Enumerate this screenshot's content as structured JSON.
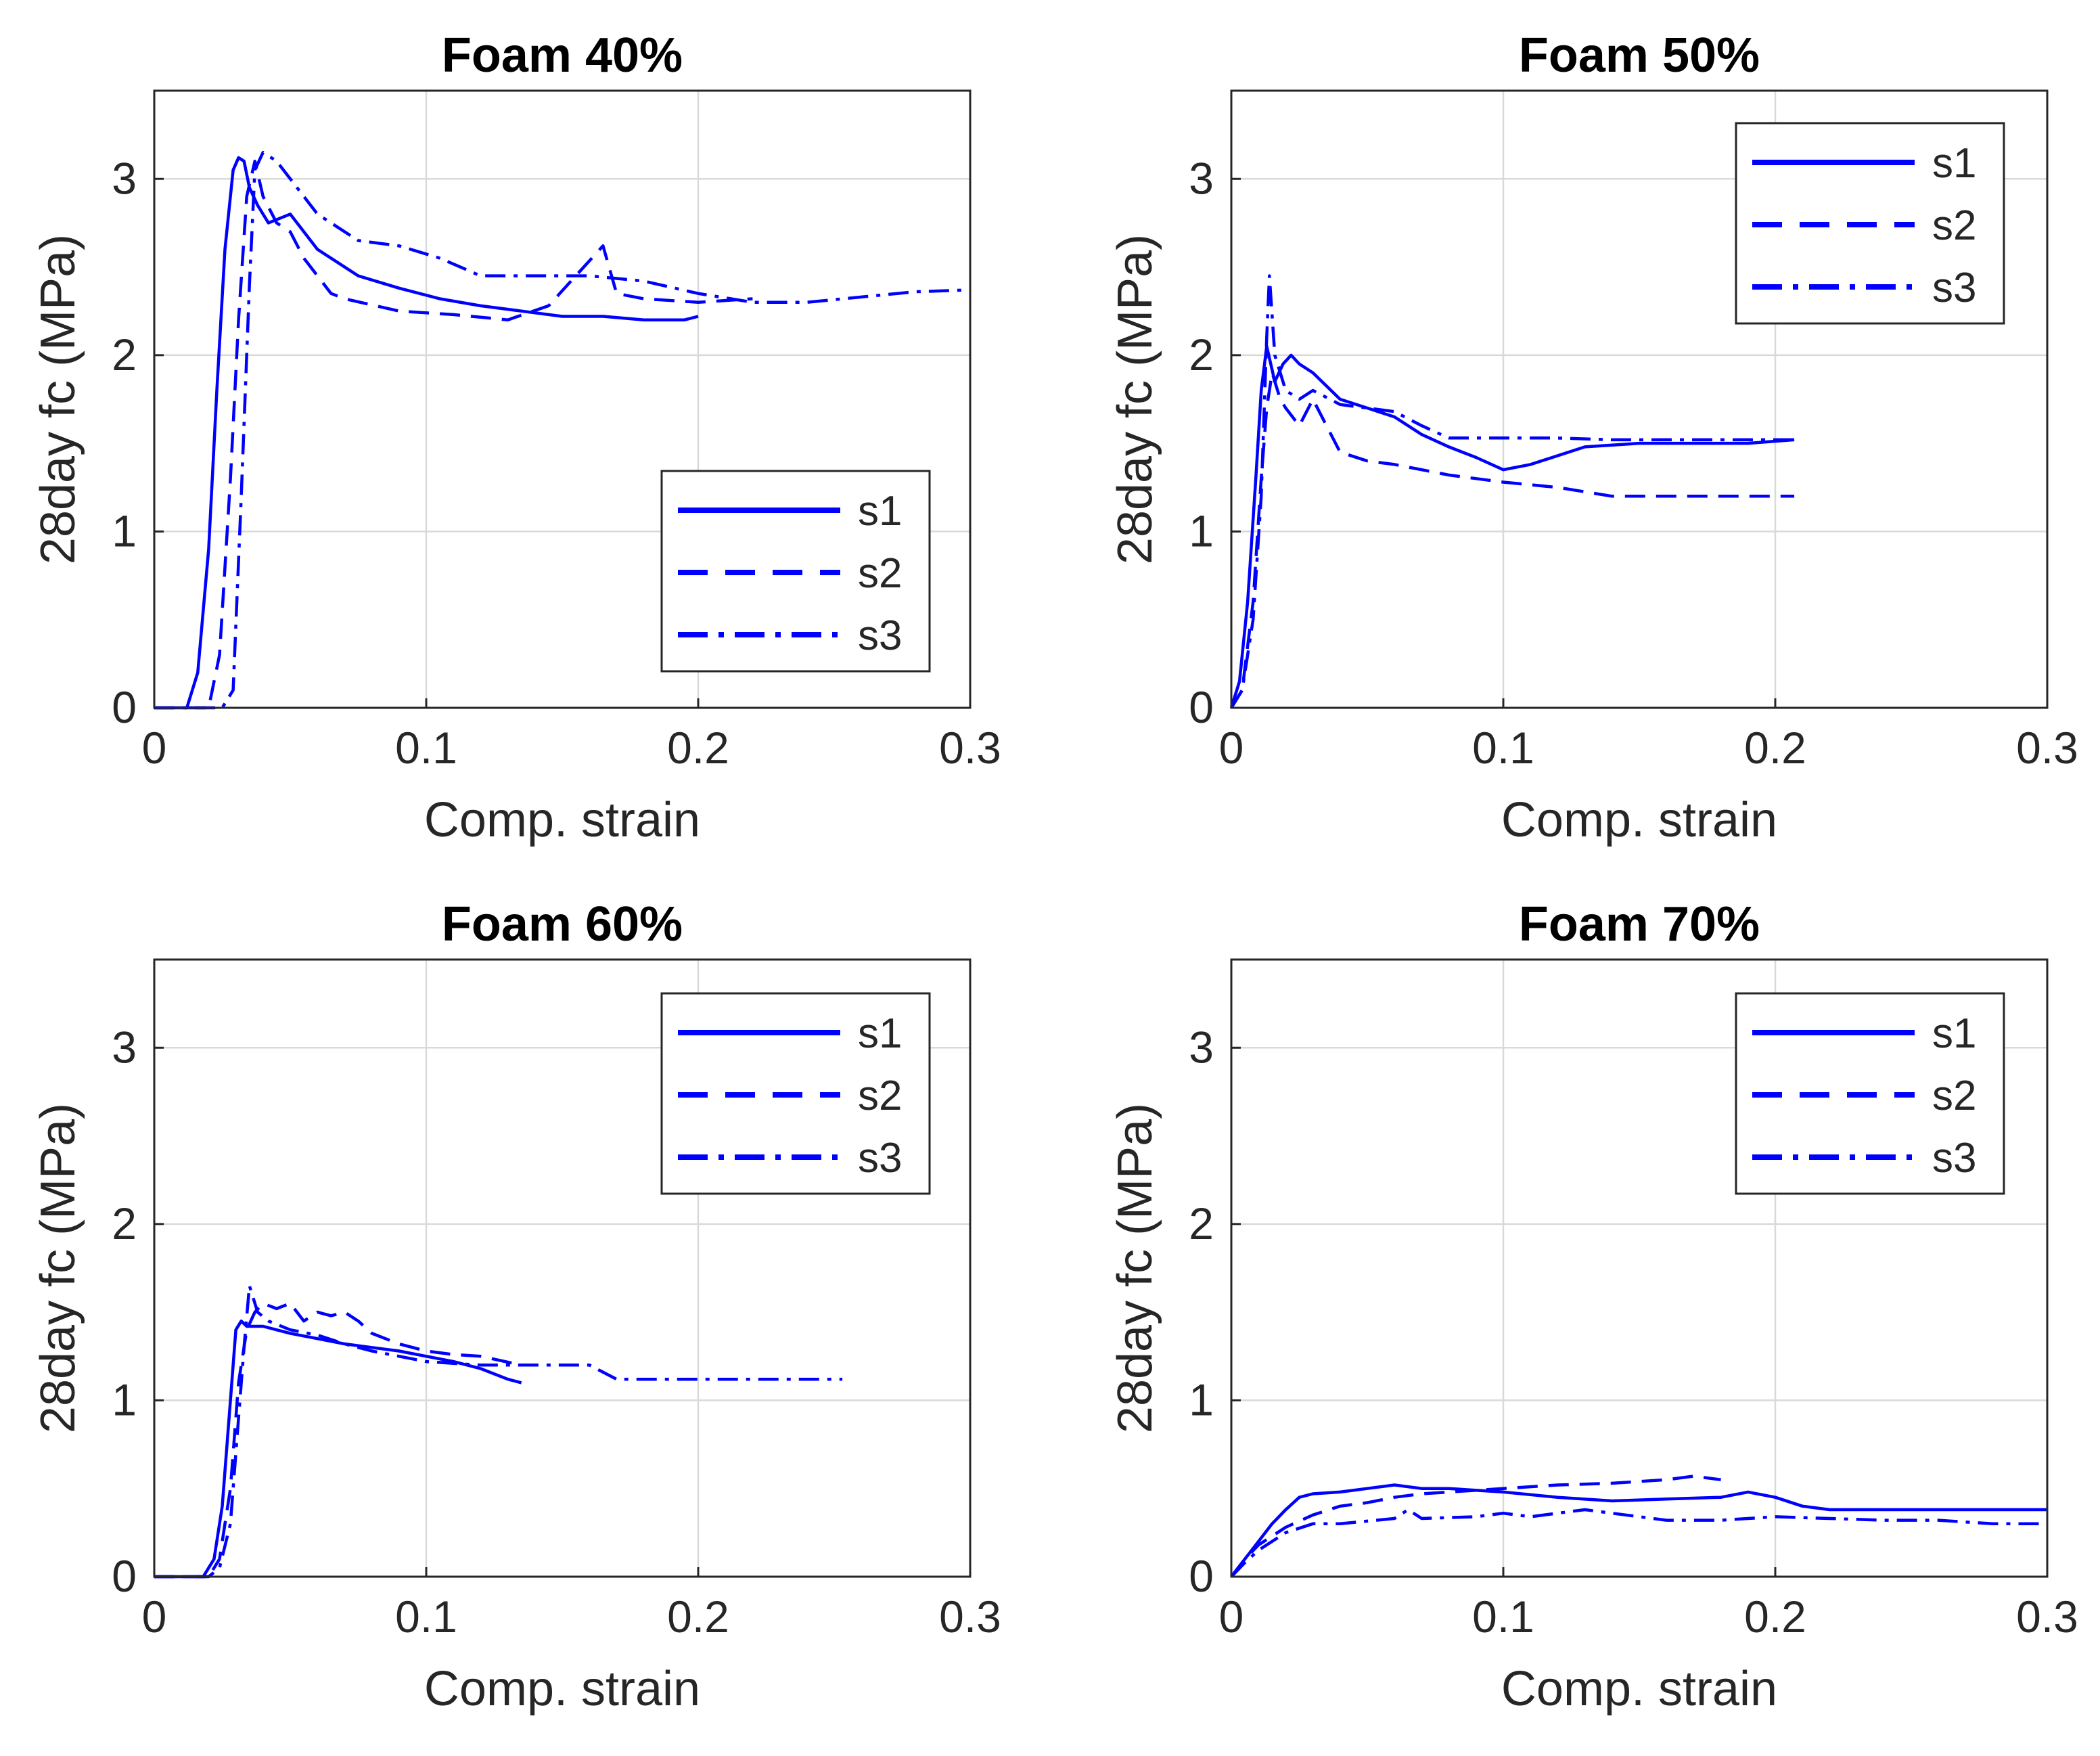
{
  "chart_data": [
    {
      "type": "line",
      "title": "Foam 40%",
      "xlabel": "Comp. strain",
      "ylabel": "28day fc (MPa)",
      "xlim": [
        0,
        0.3
      ],
      "ylim": [
        0,
        3.5
      ],
      "xticks": [
        "0",
        "0.1",
        "0.2",
        "0.3"
      ],
      "yticks": [
        "0",
        "1",
        "2",
        "3"
      ],
      "grid": true,
      "legend_position": "lower-right",
      "color": "#0000ff",
      "series": [
        {
          "name": "s1",
          "style": "solid",
          "x": [
            0,
            0.012,
            0.016,
            0.02,
            0.023,
            0.026,
            0.029,
            0.031,
            0.033,
            0.035,
            0.038,
            0.042,
            0.05,
            0.06,
            0.075,
            0.09,
            0.105,
            0.12,
            0.135,
            0.15,
            0.165,
            0.18,
            0.195,
            0.2
          ],
          "y": [
            0,
            0,
            0.2,
            0.9,
            1.8,
            2.6,
            3.05,
            3.12,
            3.1,
            2.95,
            2.85,
            2.75,
            2.8,
            2.6,
            2.45,
            2.38,
            2.32,
            2.28,
            2.25,
            2.22,
            2.22,
            2.2,
            2.2,
            2.22
          ]
        },
        {
          "name": "s2",
          "style": "dashed",
          "x": [
            0,
            0.02,
            0.024,
            0.028,
            0.031,
            0.034,
            0.037,
            0.04,
            0.045,
            0.05,
            0.055,
            0.06,
            0.065,
            0.07,
            0.09,
            0.11,
            0.13,
            0.145,
            0.155,
            0.165,
            0.17,
            0.18,
            0.2,
            0.22
          ],
          "y": [
            0,
            0,
            0.3,
            1.3,
            2.2,
            2.9,
            3.1,
            2.9,
            2.75,
            2.7,
            2.55,
            2.45,
            2.35,
            2.32,
            2.25,
            2.23,
            2.2,
            2.28,
            2.45,
            2.62,
            2.35,
            2.32,
            2.3,
            2.32
          ]
        },
        {
          "name": "s3",
          "style": "dashdot",
          "x": [
            0,
            0.025,
            0.029,
            0.032,
            0.035,
            0.037,
            0.04,
            0.045,
            0.05,
            0.06,
            0.075,
            0.09,
            0.105,
            0.12,
            0.14,
            0.16,
            0.18,
            0.2,
            0.22,
            0.24,
            0.26,
            0.28,
            0.3
          ],
          "y": [
            0,
            0,
            0.1,
            1.2,
            2.4,
            3.05,
            3.15,
            3.1,
            3.0,
            2.8,
            2.65,
            2.62,
            2.55,
            2.45,
            2.45,
            2.45,
            2.42,
            2.35,
            2.3,
            2.3,
            2.33,
            2.36,
            2.37
          ]
        }
      ],
      "legend": [
        "s1",
        "s2",
        "s3"
      ]
    },
    {
      "type": "line",
      "title": "Foam 50%",
      "xlabel": "Comp. strain",
      "ylabel": "28day fc (MPa)",
      "xlim": [
        0,
        0.3
      ],
      "ylim": [
        0,
        3.5
      ],
      "xticks": [
        "0",
        "0.1",
        "0.2",
        "0.3"
      ],
      "yticks": [
        "0",
        "1",
        "2",
        "3"
      ],
      "grid": true,
      "legend_position": "upper-right",
      "color": "#0000ff",
      "series": [
        {
          "name": "s1",
          "style": "solid",
          "x": [
            0,
            0.003,
            0.006,
            0.009,
            0.011,
            0.013,
            0.016,
            0.019,
            0.022,
            0.025,
            0.03,
            0.04,
            0.05,
            0.06,
            0.07,
            0.08,
            0.09,
            0.1,
            0.11,
            0.13,
            0.15,
            0.17,
            0.19,
            0.207
          ],
          "y": [
            0,
            0.15,
            0.6,
            1.3,
            1.8,
            2.05,
            1.85,
            1.95,
            2.0,
            1.95,
            1.9,
            1.75,
            1.7,
            1.65,
            1.55,
            1.48,
            1.42,
            1.35,
            1.38,
            1.48,
            1.5,
            1.5,
            1.5,
            1.52
          ]
        },
        {
          "name": "s2",
          "style": "dashed",
          "x": [
            0,
            0.004,
            0.008,
            0.011,
            0.013,
            0.015,
            0.018,
            0.02,
            0.025,
            0.03,
            0.04,
            0.05,
            0.06,
            0.08,
            0.1,
            0.12,
            0.14,
            0.16,
            0.18,
            0.207
          ],
          "y": [
            0,
            0.1,
            0.6,
            1.3,
            1.7,
            1.9,
            1.75,
            1.7,
            1.6,
            1.75,
            1.45,
            1.4,
            1.38,
            1.32,
            1.28,
            1.25,
            1.2,
            1.2,
            1.2,
            1.2
          ]
        },
        {
          "name": "s3",
          "style": "dashdot",
          "x": [
            0,
            0.004,
            0.008,
            0.011,
            0.013,
            0.014,
            0.016,
            0.02,
            0.025,
            0.03,
            0.04,
            0.05,
            0.06,
            0.07,
            0.08,
            0.1,
            0.12,
            0.14,
            0.16,
            0.18,
            0.207
          ],
          "y": [
            0,
            0.1,
            0.5,
            1.2,
            2.1,
            2.45,
            2.0,
            1.8,
            1.75,
            1.8,
            1.72,
            1.7,
            1.68,
            1.6,
            1.53,
            1.53,
            1.53,
            1.52,
            1.52,
            1.52,
            1.52
          ]
        }
      ],
      "legend": [
        "s1",
        "s2",
        "s3"
      ]
    },
    {
      "type": "line",
      "title": "Foam 60%",
      "xlabel": "Comp. strain",
      "ylabel": "28day fc (MPa)",
      "xlim": [
        0,
        0.3
      ],
      "ylim": [
        0,
        3.5
      ],
      "xticks": [
        "0",
        "0.1",
        "0.2",
        "0.3"
      ],
      "yticks": [
        "0",
        "1",
        "2",
        "3"
      ],
      "grid": true,
      "legend_position": "upper-right",
      "color": "#0000ff",
      "series": [
        {
          "name": "s1",
          "style": "solid",
          "x": [
            0,
            0.018,
            0.022,
            0.025,
            0.028,
            0.03,
            0.032,
            0.034,
            0.036,
            0.04,
            0.05,
            0.06,
            0.07,
            0.08,
            0.09,
            0.1,
            0.11,
            0.12,
            0.13,
            0.135
          ],
          "y": [
            0,
            0,
            0.1,
            0.4,
            1.0,
            1.4,
            1.45,
            1.42,
            1.42,
            1.42,
            1.38,
            1.35,
            1.32,
            1.3,
            1.28,
            1.25,
            1.22,
            1.18,
            1.12,
            1.1
          ]
        },
        {
          "name": "s2",
          "style": "dashed",
          "x": [
            0,
            0.02,
            0.024,
            0.028,
            0.031,
            0.034,
            0.037,
            0.04,
            0.045,
            0.05,
            0.055,
            0.06,
            0.065,
            0.07,
            0.075,
            0.08,
            0.09,
            0.1,
            0.11,
            0.12,
            0.135
          ],
          "y": [
            0,
            0,
            0.1,
            0.5,
            1.1,
            1.4,
            1.5,
            1.55,
            1.52,
            1.55,
            1.45,
            1.5,
            1.48,
            1.5,
            1.45,
            1.38,
            1.32,
            1.28,
            1.26,
            1.25,
            1.2
          ]
        },
        {
          "name": "s3",
          "style": "dashdot",
          "x": [
            0,
            0.02,
            0.024,
            0.028,
            0.031,
            0.033,
            0.035,
            0.038,
            0.042,
            0.05,
            0.06,
            0.07,
            0.08,
            0.09,
            0.1,
            0.12,
            0.14,
            0.16,
            0.17,
            0.18,
            0.2,
            0.22,
            0.24,
            0.253
          ],
          "y": [
            0,
            0,
            0.05,
            0.3,
            0.9,
            1.3,
            1.65,
            1.5,
            1.45,
            1.4,
            1.37,
            1.32,
            1.28,
            1.25,
            1.22,
            1.2,
            1.2,
            1.2,
            1.12,
            1.12,
            1.12,
            1.12,
            1.12,
            1.12
          ]
        }
      ],
      "legend": [
        "s1",
        "s2",
        "s3"
      ]
    },
    {
      "type": "line",
      "title": "Foam 70%",
      "xlabel": "Comp. strain",
      "ylabel": "28day fc (MPa)",
      "xlim": [
        0,
        0.3
      ],
      "ylim": [
        0,
        3.5
      ],
      "xticks": [
        "0",
        "0.1",
        "0.2",
        "0.3"
      ],
      "yticks": [
        "0",
        "1",
        "2",
        "3"
      ],
      "grid": true,
      "legend_position": "upper-right",
      "color": "#0000ff",
      "series": [
        {
          "name": "s1",
          "style": "solid",
          "x": [
            0,
            0.005,
            0.01,
            0.015,
            0.02,
            0.025,
            0.03,
            0.04,
            0.05,
            0.06,
            0.07,
            0.08,
            0.1,
            0.12,
            0.14,
            0.16,
            0.18,
            0.19,
            0.2,
            0.21,
            0.22,
            0.25,
            0.28,
            0.3
          ],
          "y": [
            0,
            0.1,
            0.2,
            0.3,
            0.38,
            0.45,
            0.47,
            0.48,
            0.5,
            0.52,
            0.5,
            0.5,
            0.48,
            0.45,
            0.43,
            0.44,
            0.45,
            0.48,
            0.45,
            0.4,
            0.38,
            0.38,
            0.38,
            0.38
          ]
        },
        {
          "name": "s2",
          "style": "dashed",
          "x": [
            0,
            0.005,
            0.01,
            0.02,
            0.03,
            0.04,
            0.05,
            0.06,
            0.07,
            0.08,
            0.1,
            0.12,
            0.14,
            0.16,
            0.17,
            0.18
          ],
          "y": [
            0,
            0.1,
            0.18,
            0.28,
            0.35,
            0.4,
            0.42,
            0.45,
            0.47,
            0.48,
            0.5,
            0.52,
            0.53,
            0.55,
            0.57,
            0.55
          ]
        },
        {
          "name": "s3",
          "style": "dashdot",
          "x": [
            0,
            0.005,
            0.01,
            0.015,
            0.02,
            0.03,
            0.04,
            0.06,
            0.065,
            0.07,
            0.09,
            0.1,
            0.11,
            0.13,
            0.14,
            0.16,
            0.18,
            0.2,
            0.22,
            0.24,
            0.26,
            0.28,
            0.3
          ],
          "y": [
            0,
            0.08,
            0.15,
            0.2,
            0.25,
            0.3,
            0.3,
            0.33,
            0.38,
            0.33,
            0.34,
            0.36,
            0.34,
            0.38,
            0.36,
            0.32,
            0.32,
            0.34,
            0.33,
            0.32,
            0.32,
            0.3,
            0.3
          ]
        }
      ],
      "legend": [
        "s1",
        "s2",
        "s3"
      ]
    }
  ]
}
